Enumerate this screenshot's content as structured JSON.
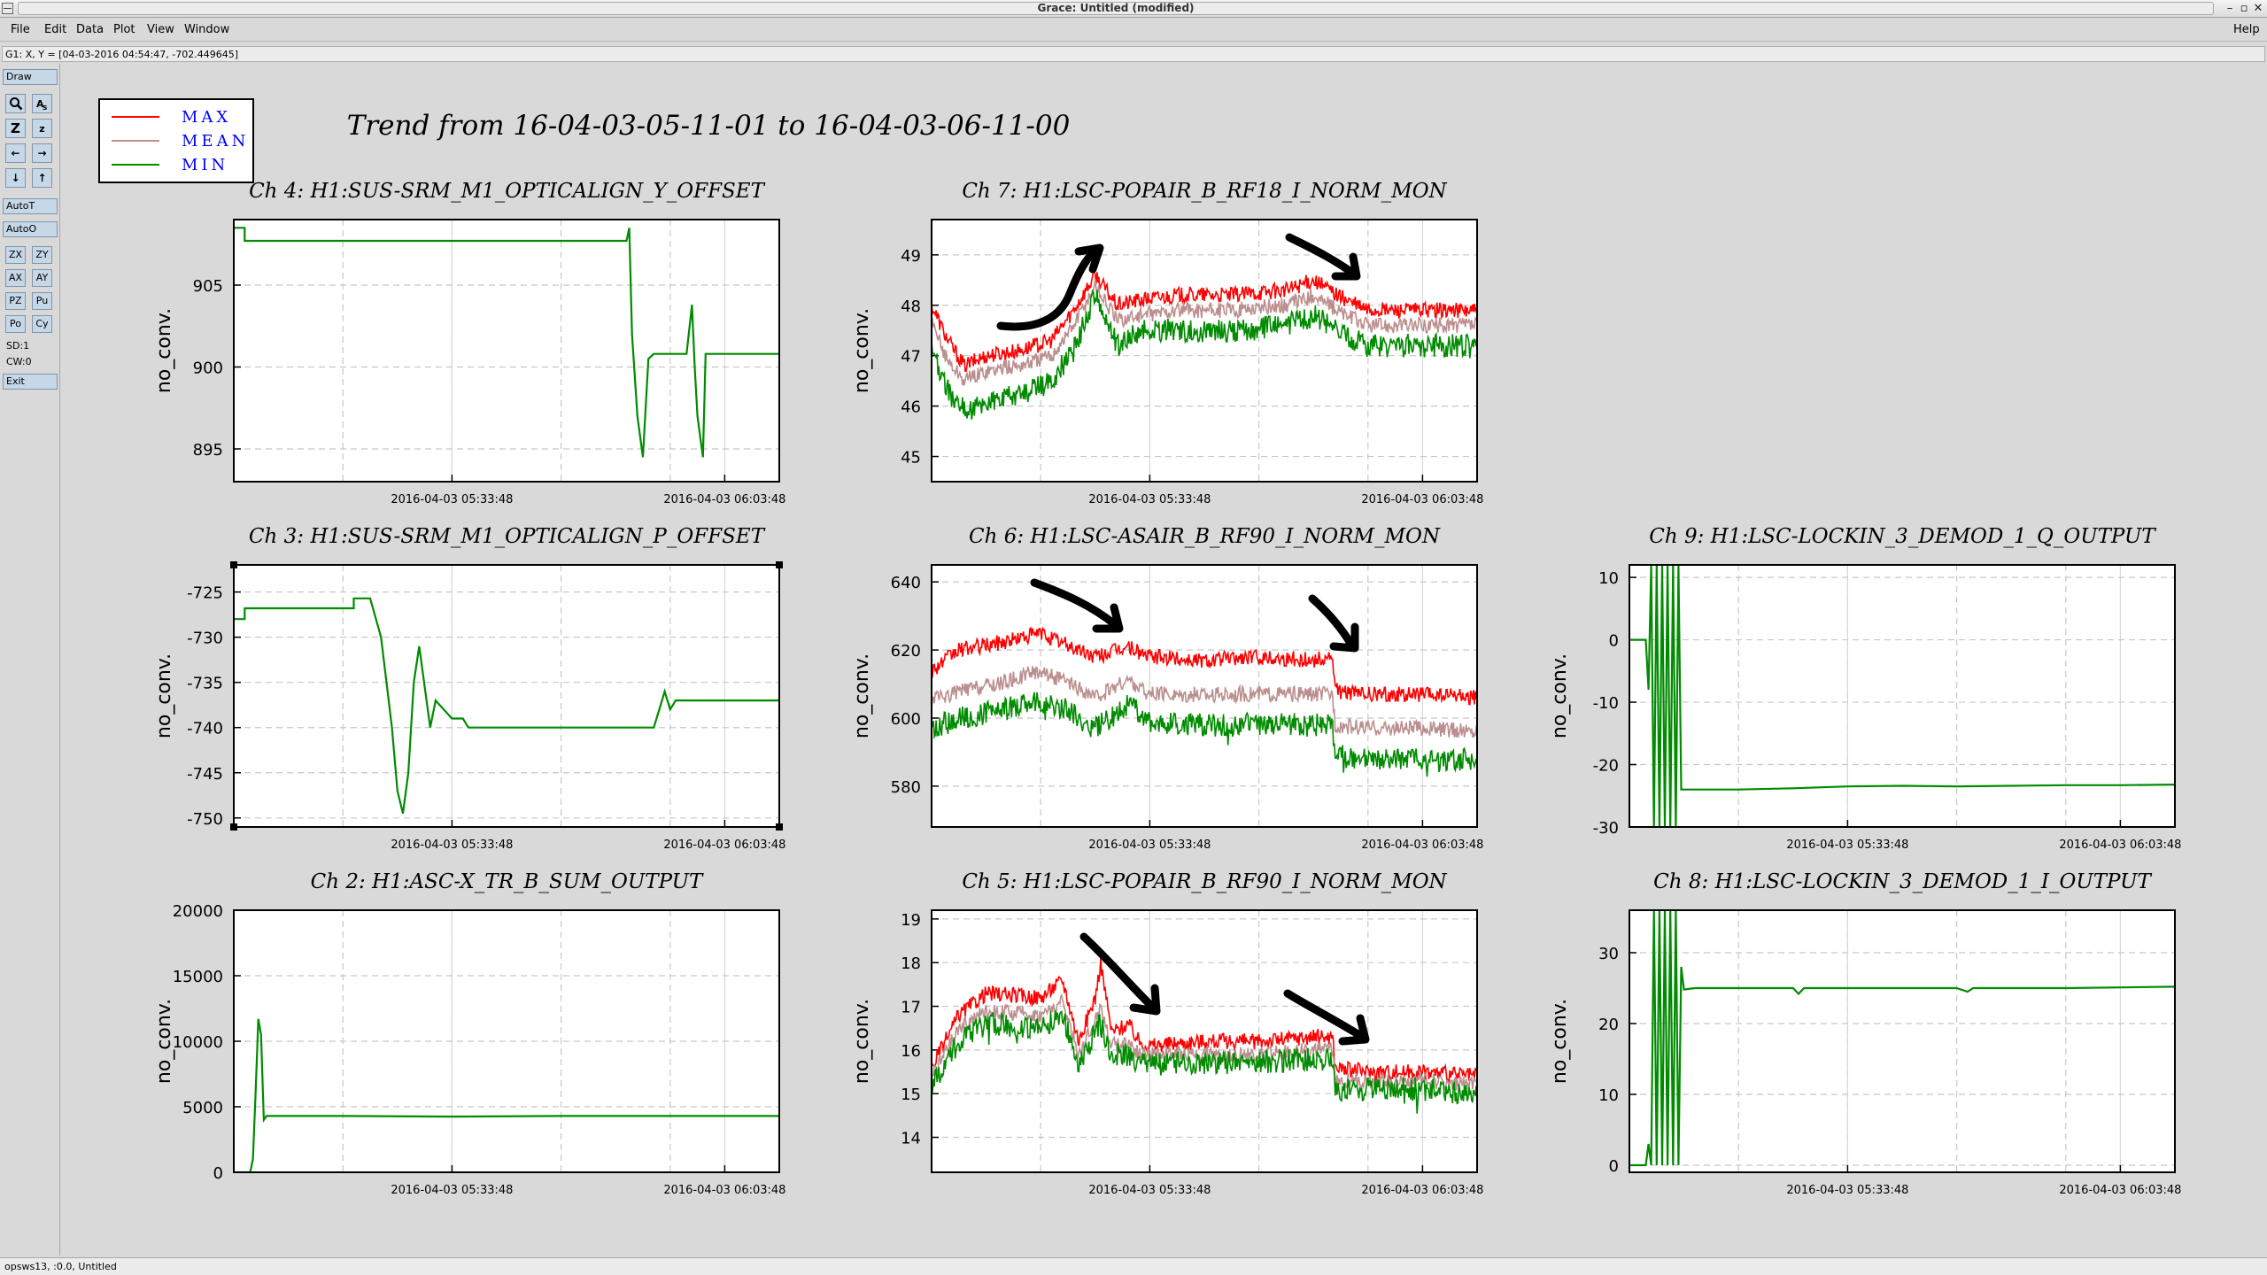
{
  "window": {
    "title": "Grace: Untitled (modified)",
    "help": "Help",
    "controls": [
      "–",
      "▫",
      "✕"
    ]
  },
  "menu": [
    "File",
    "Edit",
    "Data",
    "Plot",
    "View",
    "Window"
  ],
  "locator": "G1: X, Y = [04-03-2016 04:54:47, -702.449645]",
  "toolbar": {
    "draw": "Draw",
    "autot": "AutoT",
    "autoo": "AutoO",
    "zoom_pairs": [
      [
        "ZX",
        "ZY"
      ],
      [
        "AX",
        "AY"
      ],
      [
        "PZ",
        "Pu"
      ],
      [
        "Po",
        "Cy"
      ]
    ],
    "sd": "SD:1",
    "cw": "CW:0",
    "exit": "Exit"
  },
  "main_title": "Trend from 16-04-03-05-11-01 to 16-04-03-06-11-00",
  "legend": [
    {
      "name": "MAX",
      "color": "#ff0000"
    },
    {
      "name": "MEAN",
      "color": "#bc8f8f"
    },
    {
      "name": "MIN",
      "color": "#008b00"
    }
  ],
  "colors": {
    "max": "#ff0000",
    "mean": "#bc8f8f",
    "min": "#008b00",
    "annotation": "#000000"
  },
  "status": "opsws13, :0.0, Untitled",
  "chart_data": [
    {
      "id": "ch4",
      "type": "line",
      "title": "Ch 4: H1:SUS-SRM_M1_OPTICALIGN_Y_OFFSET",
      "ylabel": "no_conv.",
      "x_range": [
        "2016-04-03 05:11:01",
        "2016-04-03 06:11:00"
      ],
      "x_ticks": [
        "2016-04-03 05:33:48",
        "2016-04-03 06:03:48"
      ],
      "x_tick_frac": [
        0.4,
        0.9
      ],
      "ylim": [
        893,
        909
      ],
      "y_ticks": [
        895,
        900,
        905
      ],
      "series": [
        {
          "name": "MIN",
          "x": [
            0,
            0.02,
            0.02,
            0.72,
            0.725,
            0.73,
            0.74,
            0.75,
            0.76,
            0.77,
            0.78,
            0.79,
            0.81,
            0.83,
            0.84,
            0.845,
            0.85,
            0.86,
            0.865,
            0.87,
            0.88,
            0.9,
            1.0
          ],
          "values": [
            908.5,
            908.5,
            907.7,
            907.7,
            908.5,
            902,
            897,
            894.5,
            900.5,
            900.8,
            900.8,
            900.8,
            900.8,
            900.8,
            903.8,
            900,
            897,
            894.5,
            900.8,
            900.8,
            900.8,
            900.8,
            900.8
          ]
        }
      ]
    },
    {
      "id": "ch7",
      "type": "line",
      "title": "Ch 7: H1:LSC-POPAIR_B_RF18_I_NORM_MON",
      "ylabel": "no_conv.",
      "x_ticks": [
        "2016-04-03 05:33:48",
        "2016-04-03 06:03:48"
      ],
      "x_tick_frac": [
        0.4,
        0.9
      ],
      "ylim": [
        44.5,
        49.7
      ],
      "y_ticks": [
        45,
        46,
        47,
        48,
        49
      ],
      "series": [
        {
          "name": "MAX",
          "x": [
            0,
            0.03,
            0.06,
            0.1,
            0.16,
            0.22,
            0.26,
            0.3,
            0.34,
            0.38,
            0.45,
            0.55,
            0.65,
            0.7,
            0.76,
            0.8,
            0.9,
            1.0
          ],
          "values": [
            48.0,
            47.3,
            46.8,
            47.0,
            47.1,
            47.3,
            47.9,
            48.6,
            48.0,
            48.1,
            48.2,
            48.2,
            48.3,
            48.5,
            48.1,
            47.9,
            47.9,
            47.9
          ]
        },
        {
          "name": "MEAN",
          "x": [
            0,
            0.03,
            0.06,
            0.1,
            0.16,
            0.22,
            0.26,
            0.3,
            0.34,
            0.38,
            0.45,
            0.55,
            0.65,
            0.7,
            0.76,
            0.8,
            0.9,
            1.0
          ],
          "values": [
            47.6,
            46.9,
            46.5,
            46.7,
            46.8,
            47.0,
            47.6,
            48.4,
            47.7,
            47.8,
            47.9,
            47.9,
            48.0,
            48.2,
            47.8,
            47.6,
            47.6,
            47.6
          ]
        },
        {
          "name": "MIN",
          "x": [
            0,
            0.03,
            0.06,
            0.1,
            0.16,
            0.22,
            0.26,
            0.3,
            0.34,
            0.38,
            0.45,
            0.55,
            0.65,
            0.7,
            0.76,
            0.8,
            0.9,
            1.0
          ],
          "values": [
            47.1,
            46.3,
            45.9,
            46.1,
            46.2,
            46.5,
            47.1,
            48.2,
            47.2,
            47.5,
            47.5,
            47.5,
            47.6,
            47.8,
            47.4,
            47.2,
            47.2,
            47.2
          ]
        }
      ]
    },
    {
      "id": "ch3",
      "type": "line",
      "title": "Ch 3: H1:SUS-SRM_M1_OPTICALIGN_P_OFFSET",
      "ylabel": "no_conv.",
      "x_ticks": [
        "2016-04-03 05:33:48",
        "2016-04-03 06:03:48"
      ],
      "x_tick_frac": [
        0.4,
        0.9
      ],
      "ylim": [
        -751,
        -722
      ],
      "y_ticks": [
        -725,
        -730,
        -735,
        -740,
        -745,
        -750
      ],
      "series": [
        {
          "name": "MIN",
          "x": [
            0,
            0.02,
            0.02,
            0.22,
            0.22,
            0.25,
            0.27,
            0.29,
            0.3,
            0.31,
            0.32,
            0.33,
            0.34,
            0.36,
            0.37,
            0.4,
            0.42,
            0.43,
            0.45,
            0.7,
            0.77,
            0.78,
            0.79,
            0.8,
            0.81,
            0.82,
            0.83,
            1.0
          ],
          "values": [
            -728,
            -728,
            -726.8,
            -726.8,
            -725.7,
            -725.7,
            -730,
            -740,
            -747,
            -749.5,
            -745,
            -735,
            -731,
            -740,
            -737,
            -739,
            -739,
            -740,
            -740,
            -740,
            -740,
            -738,
            -736,
            -738,
            -737,
            -737,
            -737,
            -737
          ]
        }
      ]
    },
    {
      "id": "ch6",
      "type": "line",
      "title": "Ch 6: H1:LSC-ASAIR_B_RF90_I_NORM_MON",
      "ylabel": "no_conv.",
      "x_ticks": [
        "2016-04-03 05:33:48",
        "2016-04-03 06:03:48"
      ],
      "x_tick_frac": [
        0.4,
        0.9
      ],
      "ylim": [
        568,
        645
      ],
      "y_ticks": [
        580,
        600,
        620,
        640
      ],
      "series": [
        {
          "name": "MAX",
          "x": [
            0,
            0.05,
            0.12,
            0.2,
            0.24,
            0.3,
            0.36,
            0.4,
            0.5,
            0.6,
            0.7,
            0.735,
            0.74,
            0.8,
            0.9,
            1.0
          ],
          "values": [
            614,
            620,
            622,
            625,
            622,
            618,
            621,
            618,
            617,
            618,
            617,
            618,
            608,
            607,
            607,
            606
          ]
        },
        {
          "name": "MEAN",
          "x": [
            0,
            0.05,
            0.12,
            0.2,
            0.24,
            0.3,
            0.36,
            0.4,
            0.5,
            0.6,
            0.7,
            0.735,
            0.74,
            0.8,
            0.9,
            1.0
          ],
          "values": [
            605,
            608,
            610,
            614,
            611,
            606,
            611,
            607,
            607,
            607,
            607,
            607,
            598,
            597,
            597,
            596
          ]
        },
        {
          "name": "MIN",
          "x": [
            0,
            0.05,
            0.12,
            0.2,
            0.24,
            0.3,
            0.36,
            0.4,
            0.5,
            0.6,
            0.7,
            0.735,
            0.74,
            0.8,
            0.9,
            1.0
          ],
          "values": [
            597,
            600,
            602,
            605,
            603,
            597,
            604,
            599,
            598,
            598,
            598,
            598,
            589,
            588,
            588,
            588
          ]
        }
      ]
    },
    {
      "id": "ch9",
      "type": "line",
      "title": "Ch 9: H1:LSC-LOCKIN_3_DEMOD_1_Q_OUTPUT",
      "ylabel": "no_conv.",
      "x_ticks": [
        "2016-04-03 05:33:48",
        "2016-04-03 06:03:48"
      ],
      "x_tick_frac": [
        0.4,
        0.9
      ],
      "ylim": [
        -30,
        12
      ],
      "y_ticks": [
        10,
        0,
        -10,
        -20,
        -30
      ],
      "series": [
        {
          "name": "MIN",
          "x": [
            0,
            0.03,
            0.035,
            0.04,
            0.045,
            0.05,
            0.055,
            0.06,
            0.065,
            0.07,
            0.075,
            0.08,
            0.085,
            0.09,
            0.095,
            0.1,
            0.12,
            0.2,
            0.3,
            0.4,
            0.5,
            0.6,
            0.7,
            0.8,
            0.9,
            1.0
          ],
          "values": [
            0,
            0,
            -8,
            12,
            -30,
            12,
            -30,
            12,
            -30,
            12,
            -30,
            12,
            -30,
            12,
            -24,
            -24,
            -24,
            -24,
            -23.8,
            -23.5,
            -23.4,
            -23.5,
            -23.4,
            -23.3,
            -23.3,
            -23.2
          ]
        }
      ]
    },
    {
      "id": "ch2",
      "type": "line",
      "title": "Ch 2: H1:ASC-X_TR_B_SUM_OUTPUT",
      "ylabel": "no_conv.",
      "x_ticks": [
        "2016-04-03 05:33:48",
        "2016-04-03 06:03:48"
      ],
      "x_tick_frac": [
        0.4,
        0.9
      ],
      "ylim": [
        0,
        20000
      ],
      "y_ticks": [
        0,
        5000,
        10000,
        15000,
        20000
      ],
      "series": [
        {
          "name": "MIN",
          "x": [
            0,
            0.03,
            0.035,
            0.04,
            0.045,
            0.05,
            0.055,
            0.06,
            0.07,
            0.2,
            0.4,
            0.6,
            0.8,
            1.0
          ],
          "values": [
            0,
            0,
            1000,
            6000,
            11700,
            10500,
            4000,
            4300,
            4300,
            4300,
            4250,
            4300,
            4300,
            4300
          ]
        }
      ]
    },
    {
      "id": "ch5",
      "type": "line",
      "title": "Ch 5: H1:LSC-POPAIR_B_RF90_I_NORM_MON",
      "ylabel": "no_conv.",
      "x_ticks": [
        "2016-04-03 05:33:48",
        "2016-04-03 06:03:48"
      ],
      "x_tick_frac": [
        0.4,
        0.9
      ],
      "ylim": [
        13.2,
        19.2
      ],
      "y_ticks": [
        14,
        15,
        16,
        17,
        18,
        19
      ],
      "series": [
        {
          "name": "MAX",
          "x": [
            0,
            0.05,
            0.1,
            0.2,
            0.24,
            0.27,
            0.3,
            0.31,
            0.33,
            0.36,
            0.38,
            0.4,
            0.5,
            0.6,
            0.7,
            0.735,
            0.74,
            0.8,
            0.9,
            1.0
          ],
          "values": [
            15.6,
            16.8,
            17.3,
            17.2,
            17.6,
            16.2,
            17.2,
            18.0,
            16.4,
            16.6,
            16.2,
            16.1,
            16.2,
            16.2,
            16.3,
            16.3,
            15.6,
            15.5,
            15.5,
            15.4
          ]
        },
        {
          "name": "MEAN",
          "x": [
            0,
            0.05,
            0.1,
            0.2,
            0.24,
            0.27,
            0.3,
            0.31,
            0.33,
            0.36,
            0.38,
            0.4,
            0.5,
            0.6,
            0.7,
            0.735,
            0.74,
            0.8,
            0.9,
            1.0
          ],
          "values": [
            15.4,
            16.5,
            16.9,
            16.8,
            17.1,
            15.9,
            16.7,
            17.0,
            16.1,
            16.2,
            15.9,
            15.9,
            15.9,
            15.9,
            16.0,
            16.0,
            15.3,
            15.3,
            15.3,
            15.2
          ]
        },
        {
          "name": "MIN",
          "x": [
            0,
            0.05,
            0.1,
            0.2,
            0.24,
            0.27,
            0.3,
            0.31,
            0.33,
            0.36,
            0.38,
            0.4,
            0.5,
            0.6,
            0.7,
            0.735,
            0.74,
            0.8,
            0.9,
            1.0
          ],
          "values": [
            15.2,
            16.2,
            16.6,
            16.5,
            16.8,
            15.7,
            16.4,
            16.6,
            15.9,
            15.9,
            15.7,
            15.7,
            15.7,
            15.7,
            15.8,
            15.8,
            15.1,
            15.1,
            15.1,
            15.0
          ]
        }
      ]
    },
    {
      "id": "ch8",
      "type": "line",
      "title": "Ch 8: H1:LSC-LOCKIN_3_DEMOD_1_I_OUTPUT",
      "ylabel": "no_conv.",
      "x_ticks": [
        "2016-04-03 05:33:48",
        "2016-04-03 06:03:48"
      ],
      "x_tick_frac": [
        0.4,
        0.9
      ],
      "ylim": [
        -1,
        36
      ],
      "y_ticks": [
        0,
        10,
        20,
        30
      ],
      "series": [
        {
          "name": "MIN",
          "x": [
            0,
            0.03,
            0.035,
            0.04,
            0.045,
            0.05,
            0.055,
            0.06,
            0.065,
            0.07,
            0.075,
            0.08,
            0.085,
            0.09,
            0.095,
            0.1,
            0.12,
            0.2,
            0.3,
            0.31,
            0.32,
            0.4,
            0.6,
            0.62,
            0.63,
            0.7,
            0.8,
            1.0
          ],
          "values": [
            0,
            0,
            3,
            0,
            36,
            0,
            36,
            0,
            36,
            0,
            36,
            0,
            36,
            0,
            28,
            24.8,
            25,
            25,
            25,
            24.2,
            25,
            25,
            25,
            24.5,
            25,
            25,
            25,
            25.2
          ]
        }
      ]
    }
  ]
}
